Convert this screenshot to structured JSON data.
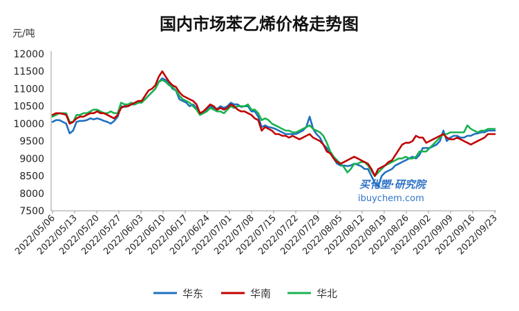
{
  "chart_data": {
    "type": "line",
    "title": "国内市场苯乙烯价格走势图",
    "unit_label": "元/吨",
    "ylim": [
      7500,
      12000
    ],
    "yticks": [
      7500,
      8000,
      8500,
      9000,
      9500,
      10000,
      10500,
      11000,
      11500,
      12000
    ],
    "x_tick_labels": [
      "2022/05/06",
      "2022/05/13",
      "2022/05/20",
      "2022/05/27",
      "2022/06/03",
      "2022/06/10",
      "2022/06/17",
      "2022/06/24",
      "2022/07/01",
      "2022/07/08",
      "2022/07/15",
      "2022/07/22",
      "2022/07/29",
      "2022/08/05",
      "2022/08/12",
      "2022/08/19",
      "2022/08/26",
      "2022/09/02",
      "2022/09/09",
      "2022/09/16",
      "2022/09/23"
    ],
    "grid": false,
    "legend_position": "bottom",
    "series": [
      {
        "name": "华东",
        "color": "#1f6fbf",
        "values": [
          10050,
          10100,
          10100,
          10050,
          10000,
          9720,
          9800,
          10050,
          10080,
          10080,
          10100,
          10150,
          10120,
          10150,
          10120,
          10080,
          10050,
          10000,
          10080,
          10200,
          10500,
          10480,
          10500,
          10550,
          10550,
          10600,
          10620,
          10700,
          10800,
          10900,
          11000,
          11200,
          11300,
          11250,
          11150,
          11000,
          10950,
          10700,
          10650,
          10600,
          10500,
          10550,
          10450,
          10250,
          10300,
          10400,
          10500,
          10450,
          10420,
          10500,
          10450,
          10500,
          10600,
          10550,
          10550,
          10480,
          10500,
          10500,
          10350,
          10350,
          10200,
          9900,
          9950,
          9900,
          9880,
          9850,
          9800,
          9750,
          9700,
          9700,
          9700,
          9700,
          9750,
          9800,
          9900,
          10200,
          9850,
          9700,
          9600,
          9400,
          9300,
          9150,
          9000,
          8850,
          8800,
          8800,
          8780,
          8800,
          8850,
          8820,
          8780,
          8700,
          8700,
          8500,
          8300,
          8200,
          8500,
          8600,
          8650,
          8700,
          8800,
          8850,
          8900,
          8950,
          9000,
          9050,
          9000,
          9100,
          9300,
          9300,
          9300,
          9350,
          9400,
          9500,
          9800,
          9500,
          9600,
          9650,
          9650,
          9600,
          9600,
          9650,
          9650,
          9700,
          9720,
          9750,
          9750,
          9800,
          9800,
          9800
        ]
      },
      {
        "name": "华南",
        "color": "#c00000",
        "values": [
          10250,
          10300,
          10300,
          10280,
          10250,
          10000,
          10050,
          10150,
          10200,
          10200,
          10250,
          10300,
          10300,
          10350,
          10300,
          10300,
          10250,
          10200,
          10150,
          10250,
          10450,
          10500,
          10500,
          10550,
          10600,
          10650,
          10650,
          10800,
          10950,
          11000,
          11100,
          11350,
          11500,
          11350,
          11200,
          11100,
          11050,
          10900,
          10800,
          10750,
          10700,
          10650,
          10550,
          10300,
          10350,
          10450,
          10550,
          10500,
          10400,
          10450,
          10400,
          10450,
          10550,
          10500,
          10400,
          10350,
          10350,
          10300,
          10250,
          10150,
          10100,
          9800,
          9900,
          9850,
          9800,
          9700,
          9700,
          9650,
          9650,
          9600,
          9650,
          9600,
          9550,
          9600,
          9650,
          9700,
          9600,
          9550,
          9500,
          9400,
          9200,
          9150,
          9000,
          8900,
          8850,
          8900,
          8950,
          9000,
          9050,
          9000,
          8950,
          8900,
          8850,
          8700,
          8500,
          8700,
          8750,
          8800,
          8900,
          8950,
          9100,
          9250,
          9400,
          9450,
          9450,
          9500,
          9650,
          9600,
          9600,
          9450,
          9500,
          9550,
          9600,
          9650,
          9700,
          9600,
          9550,
          9550,
          9600,
          9550,
          9500,
          9450,
          9400,
          9450,
          9500,
          9550,
          9600,
          9700,
          9700,
          9700
        ]
      },
      {
        "name": "华北",
        "color": "#19b250",
        "values": [
          10200,
          10250,
          10300,
          10300,
          10300,
          10050,
          10050,
          10250,
          10250,
          10300,
          10300,
          10350,
          10400,
          10400,
          10350,
          10300,
          10300,
          10350,
          10300,
          10300,
          10600,
          10550,
          10550,
          10600,
          10550,
          10600,
          10600,
          10700,
          10800,
          10900,
          11000,
          11200,
          11250,
          11200,
          11100,
          11050,
          10950,
          10800,
          10700,
          10650,
          10600,
          10500,
          10400,
          10250,
          10300,
          10350,
          10450,
          10400,
          10350,
          10350,
          10300,
          10400,
          10500,
          10450,
          10500,
          10500,
          10500,
          10550,
          10400,
          10400,
          10300,
          10100,
          10150,
          10100,
          10000,
          9950,
          9900,
          9850,
          9800,
          9800,
          9750,
          9750,
          9800,
          9850,
          9900,
          9950,
          9850,
          9800,
          9750,
          9650,
          9450,
          9200,
          9050,
          8950,
          8850,
          8750,
          8600,
          8700,
          8850,
          8850,
          8900,
          8900,
          8800,
          8650,
          8500,
          8600,
          8700,
          8800,
          8850,
          8900,
          8950,
          9000,
          9000,
          9050,
          9000,
          9000,
          9050,
          9200,
          9200,
          9200,
          9300,
          9400,
          9500,
          9600,
          9700,
          9700,
          9750,
          9750,
          9750,
          9750,
          9750,
          9950,
          9850,
          9800,
          9750,
          9800,
          9800,
          9850,
          9850,
          9850
        ]
      }
    ]
  },
  "watermark": {
    "main": "买化塑·研究院",
    "sub": "ibuychem.com"
  }
}
